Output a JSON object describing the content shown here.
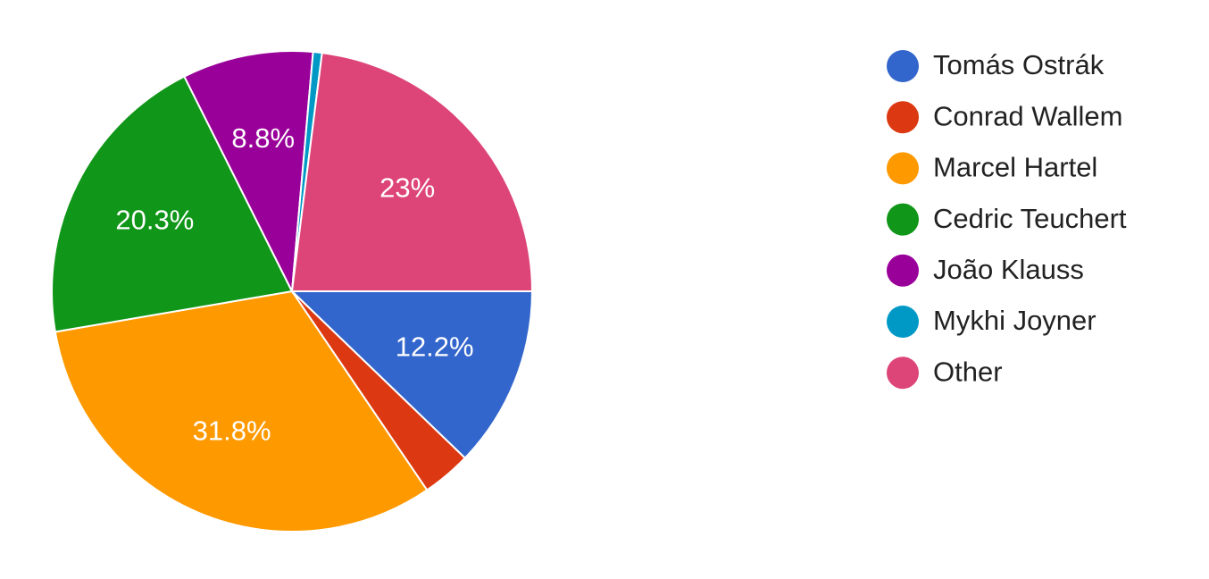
{
  "chart_data": {
    "type": "pie",
    "categories": [
      "Tomás Ostrák",
      "Conrad Wallem",
      "Marcel Hartel",
      "Cedric Teuchert",
      "João Klauss",
      "Mykhi Joyner",
      "Other"
    ],
    "values": [
      12.2,
      3.3,
      31.8,
      20.3,
      8.8,
      0.6,
      23
    ],
    "value_labels": [
      "12.2%",
      null,
      "31.8%",
      "20.3%",
      "8.8%",
      null,
      "23%"
    ],
    "colors": [
      "#3366cc",
      "#dc3912",
      "#ff9900",
      "#109618",
      "#990099",
      "#0099c6",
      "#dd4477"
    ],
    "legend": "right"
  }
}
